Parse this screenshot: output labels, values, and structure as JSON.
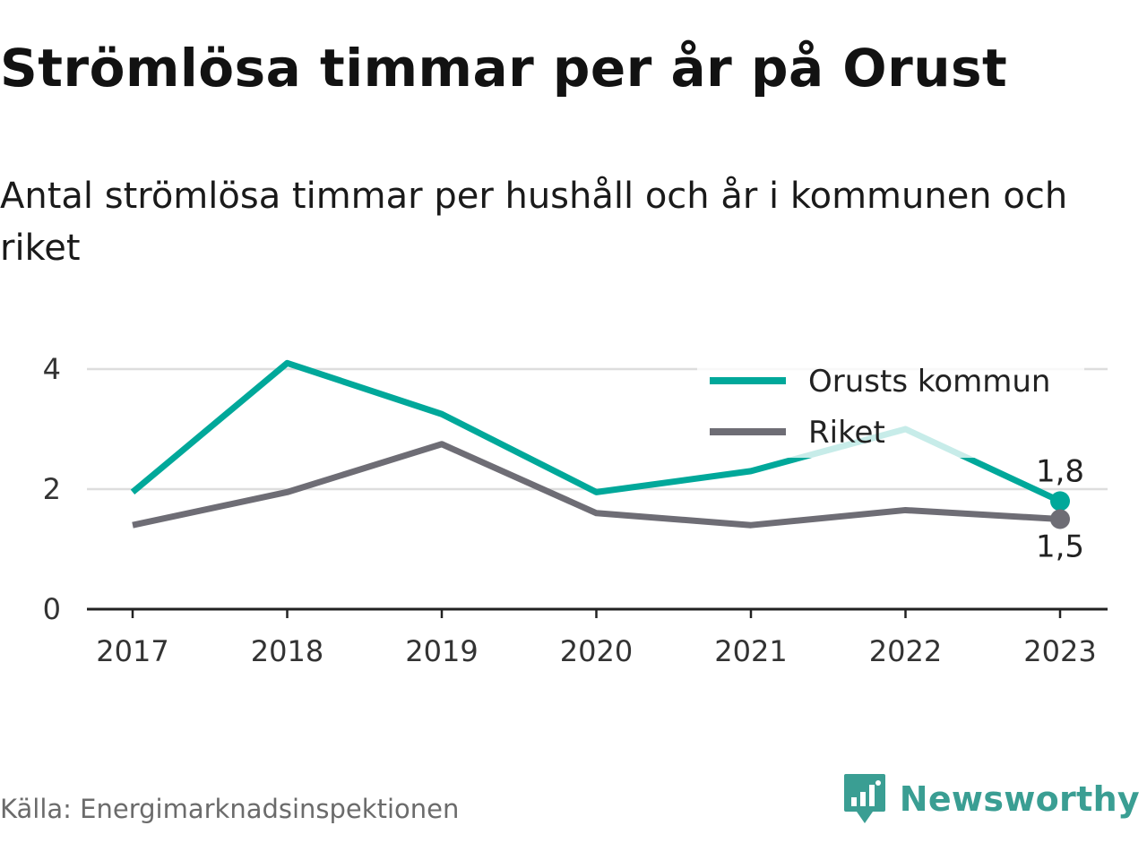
{
  "title": "Strömlösa timmar per år på Orust",
  "subtitle": "Antal strömlösa timmar per hushåll och år i kommunen och riket",
  "source": "Källa: Energimarknadsinspektionen",
  "brand": "Newsworthy",
  "colors": {
    "orust": "#00a89a",
    "riket": "#6e6d75",
    "grid": "#dddddd",
    "axis": "#222222",
    "brand": "#3a9e93"
  },
  "chart_data": {
    "type": "line",
    "x": [
      "2017",
      "2018",
      "2019",
      "2020",
      "2021",
      "2022",
      "2023"
    ],
    "ylim": [
      0,
      4.3
    ],
    "yticks": [
      {
        "value": 0,
        "label": "0"
      },
      {
        "value": 2,
        "label": "2"
      },
      {
        "value": 4,
        "label": "4"
      }
    ],
    "grid": true,
    "legend_position": "top-right",
    "series": [
      {
        "name": "Orusts kommun",
        "color": "#00a89a",
        "values": [
          1.95,
          4.1,
          3.25,
          1.95,
          2.3,
          3.0,
          1.8
        ],
        "end_label": "1,8"
      },
      {
        "name": "Riket",
        "color": "#6e6d75",
        "values": [
          1.4,
          1.95,
          2.75,
          1.6,
          1.4,
          1.65,
          1.5
        ],
        "end_label": "1,5"
      }
    ]
  }
}
